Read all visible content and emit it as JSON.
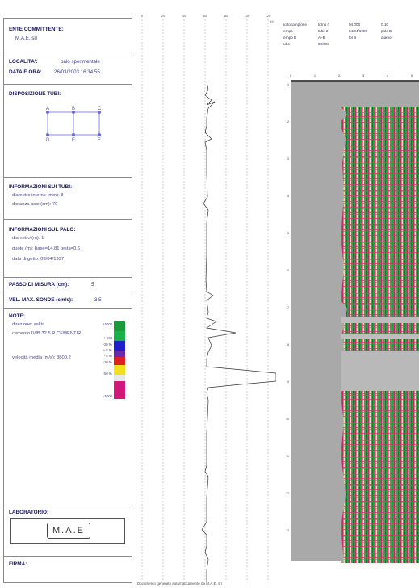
{
  "info": {
    "ente_label": "ENTE COMMITTENTE:",
    "ente_value": "M.A.E. srl",
    "localita_label": "LOCALITA':",
    "localita_value": "palo sperimentale",
    "data_label": "DATA E ORA:",
    "data_value": "26/03/2003 16.34.55",
    "tubi_label": "DISPOSIZIONE TUBI:",
    "tube_letters": [
      "A",
      "B",
      "C",
      "D",
      "E",
      "F"
    ],
    "info_tubi_label": "INFORMAZIONI SUI TUBI:",
    "diametro_tubi": "diametro interno (mm): 8",
    "distanza": "distanza assi (cm): 70",
    "info_palo_label": "INFORMAZIONI SUL PALO:",
    "diametro_palo": "diametro (m): 1",
    "quote": "quote (m): base=14.81   testa=0.6",
    "getto": "data di getto: 03/04/1997",
    "passo_label": "PASSO DI MISURA (cm):",
    "passo_value": "5",
    "vel_label": "VEL. MAX. SONDE (cm/s):",
    "vel_value": "3.5",
    "note_label": "NOTE:",
    "note_1": "direzione: salita",
    "note_2": "cemento IV/B 32.5 R CEMENTIR",
    "velocita": "velocità media (m/s): 3800.2",
    "legend_labels": [
      "+5000",
      "+ 500",
      "+20 ‰",
      "+ 5 ‰",
      "- 5 ‰",
      "-20 ‰",
      "-50 ‰",
      "-5000"
    ],
    "legend_colors": [
      "#1a9a3a",
      "#1cb04a",
      "#2020c8",
      "#6a2ab0",
      "#e02020",
      "#f0e020",
      "#e8e8e8",
      "#d01878"
    ],
    "laboratorio_label": "LABORATORIO:",
    "logo_text": "M.A.E",
    "firma_label": "FIRMA:"
  },
  "graph": {
    "x_ticks": [
      "0",
      "20",
      "40",
      "60",
      "80",
      "100",
      "120"
    ],
    "unit": "kV"
  },
  "header_table": {
    "cells": [
      [
        "sottocampione",
        "tomo n",
        "04.006",
        "0.10"
      ],
      [
        "tempo",
        "tubi: 2",
        "04/04/1999",
        "palo B"
      ],
      [
        "tempo B",
        "A–B",
        "tbl B",
        "diamo"
      ],
      [
        "tubo",
        "00/003",
        "",
        ""
      ]
    ]
  },
  "tomogram": {
    "x_ticks": [
      "0",
      "1",
      "2",
      "3",
      "4",
      "5"
    ],
    "y_ticks": [
      "1",
      "2",
      "3",
      "4",
      "5",
      "6",
      "7",
      "8",
      "9",
      "10",
      "11",
      "12",
      "13"
    ]
  },
  "footer": "Documento generato automaticamente da M.A.E. srl"
}
